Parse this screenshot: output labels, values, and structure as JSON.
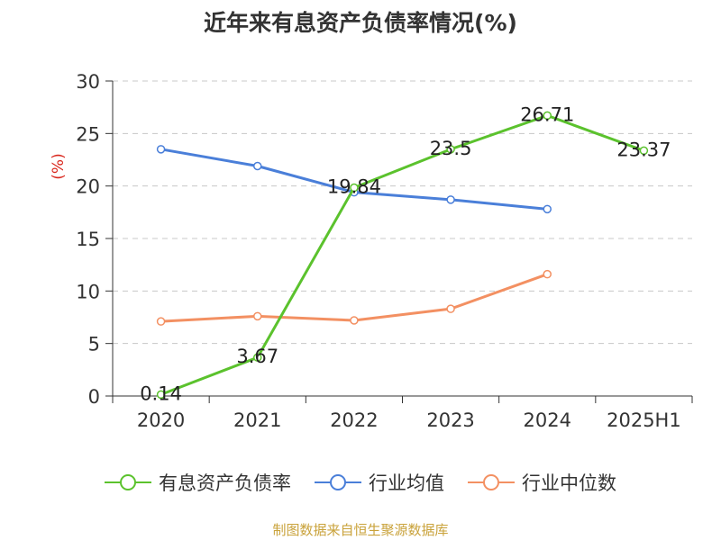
{
  "chart_data": {
    "type": "line",
    "title": "近年来有息资产负债率情况(%)",
    "ylabel": "(%)",
    "categories": [
      "2020",
      "2021",
      "2022",
      "2023",
      "2024",
      "2025H1"
    ],
    "ylim": [
      0,
      30
    ],
    "yticks": [
      0,
      5,
      10,
      15,
      20,
      25,
      30
    ],
    "grid": true,
    "legend_position": "bottom",
    "series": [
      {
        "name": "有息资产负债率",
        "color": "#5bc22d",
        "values": [
          0.14,
          3.67,
          19.84,
          23.5,
          26.71,
          23.37
        ],
        "labels": [
          "0.14",
          "3.67",
          "19.84",
          "23.5",
          "26.71",
          "23.37"
        ]
      },
      {
        "name": "行业均值",
        "color": "#4a7fd9",
        "values": [
          23.5,
          21.9,
          19.4,
          18.7,
          17.8,
          null
        ]
      },
      {
        "name": "行业中位数",
        "color": "#f39062",
        "values": [
          7.1,
          7.6,
          7.2,
          8.3,
          11.6,
          null
        ]
      }
    ]
  },
  "source": "制图数据来自恒生聚源数据库"
}
